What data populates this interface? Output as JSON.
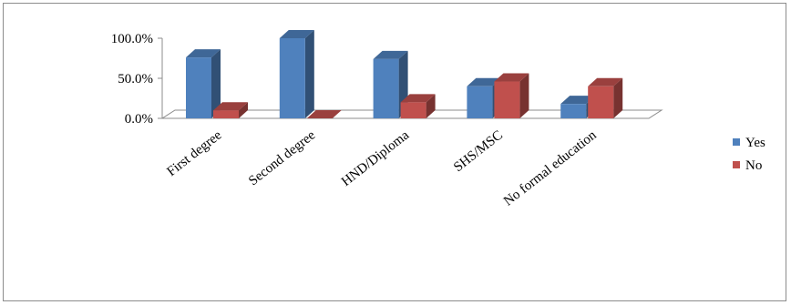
{
  "chart_data": {
    "type": "bar",
    "title": "",
    "xlabel": "",
    "ylabel": "",
    "ylim": [
      0,
      100
    ],
    "yticks": [
      "100.0%",
      "50.0%",
      "0.0%"
    ],
    "categories": [
      "First degree",
      "Second degree",
      "HND/Diploma",
      "SHS/MSC",
      "No formal education"
    ],
    "series": [
      {
        "name": "Yes",
        "color": "#4f81bd",
        "values": [
          76,
          100,
          74,
          40,
          18
        ]
      },
      {
        "name": "No",
        "color": "#c0504d",
        "values": [
          10,
          0,
          20,
          46,
          40
        ]
      }
    ],
    "legend_position": "right",
    "grid": false,
    "style": "3d-clustered"
  }
}
